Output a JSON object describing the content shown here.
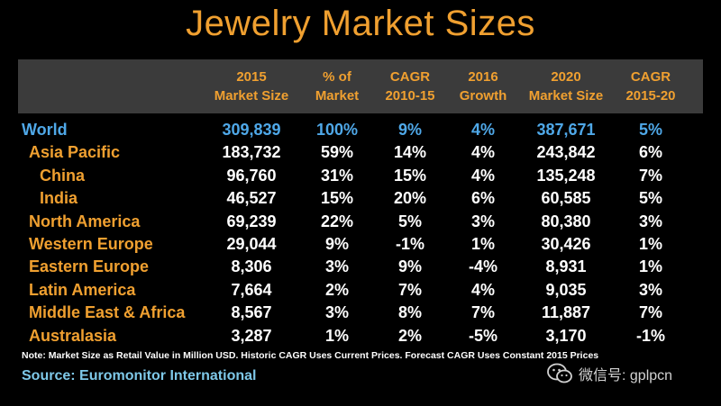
{
  "chart_data": {
    "type": "table",
    "title": "Jewelry Market Sizes",
    "columns": [
      "",
      "2015\nMarket Size",
      "% of\nMarket",
      "CAGR\n2010-15",
      "2016\nGrowth",
      "2020\nMarket Size",
      "CAGR\n2015-20"
    ],
    "column_lines": [
      [
        "2015",
        "Market Size"
      ],
      [
        "% of",
        "Market"
      ],
      [
        "CAGR",
        "2010-15"
      ],
      [
        "2016",
        "Growth"
      ],
      [
        "2020",
        "Market Size"
      ],
      [
        "CAGR",
        "2015-20"
      ]
    ],
    "rows": [
      {
        "region": "World",
        "level": 0,
        "values": [
          "309,839",
          "100%",
          "9%",
          "4%",
          "387,671",
          "5%"
        ]
      },
      {
        "region": "Asia Pacific",
        "level": 1,
        "values": [
          "183,732",
          "59%",
          "14%",
          "4%",
          "243,842",
          "6%"
        ]
      },
      {
        "region": "China",
        "level": 2,
        "values": [
          "96,760",
          "31%",
          "15%",
          "4%",
          "135,248",
          "7%"
        ]
      },
      {
        "region": "India",
        "level": 2,
        "values": [
          "46,527",
          "15%",
          "20%",
          "6%",
          "60,585",
          "5%"
        ]
      },
      {
        "region": "North America",
        "level": 1,
        "values": [
          "69,239",
          "22%",
          "5%",
          "3%",
          "80,380",
          "3%"
        ]
      },
      {
        "region": "Western Europe",
        "level": 1,
        "values": [
          "29,044",
          "9%",
          "-1%",
          "1%",
          "30,426",
          "1%"
        ]
      },
      {
        "region": "Eastern Europe",
        "level": 1,
        "values": [
          "8,306",
          "3%",
          "9%",
          "-4%",
          "8,931",
          "1%"
        ]
      },
      {
        "region": "Latin America",
        "level": 1,
        "values": [
          "7,664",
          "2%",
          "7%",
          "4%",
          "9,035",
          "3%"
        ]
      },
      {
        "region": "Middle East & Africa",
        "level": 1,
        "values": [
          "8,567",
          "3%",
          "8%",
          "7%",
          "11,887",
          "7%"
        ]
      },
      {
        "region": "Australasia",
        "level": 1,
        "values": [
          "3,287",
          "1%",
          "2%",
          "-5%",
          "3,170",
          "-1%"
        ]
      }
    ]
  },
  "note": "Note: Market Size as Retail Value in Million USD. Historic CAGR Uses Current Prices. Forecast CAGR Uses Constant 2015 Prices",
  "source": "Source: Euromonitor International",
  "watermark": {
    "text": "微信号: gplpcn",
    "icon": "wechat-icon"
  },
  "colors": {
    "title": "#f0a030",
    "header_text": "#f0a030",
    "header_band": "#3b3b3b",
    "region_label": "#f0a030",
    "world": "#4fa8e8",
    "values": "#ffffff",
    "source": "#7ec8e8",
    "background": "#000000"
  }
}
